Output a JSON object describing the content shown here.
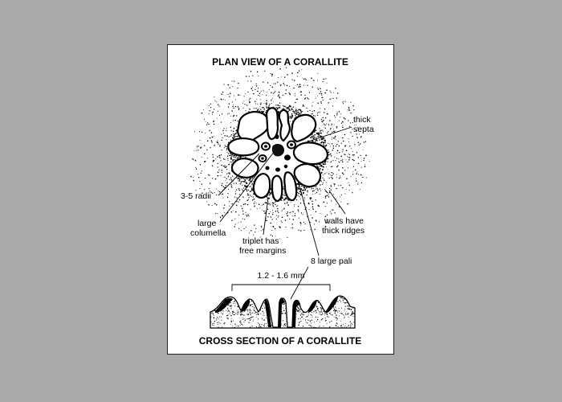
{
  "top_title": "PLAN VIEW OF A CORALLITE",
  "bottom_title": "CROSS SECTION OF A CORALLITE",
  "labels": {
    "thick_septa": [
      "thick",
      "septa"
    ],
    "radii": "3-5 radii",
    "columella": [
      "large",
      "columella"
    ],
    "walls": [
      "walls have",
      "thick ridges"
    ],
    "triplet": [
      "triplet has",
      "free margins"
    ],
    "pali": "8 large pali",
    "measure": "1.2 - 1.6 mm"
  },
  "colors": {
    "background": "#a9a9a9",
    "card": "#ffffff",
    "ink": "#000000"
  }
}
